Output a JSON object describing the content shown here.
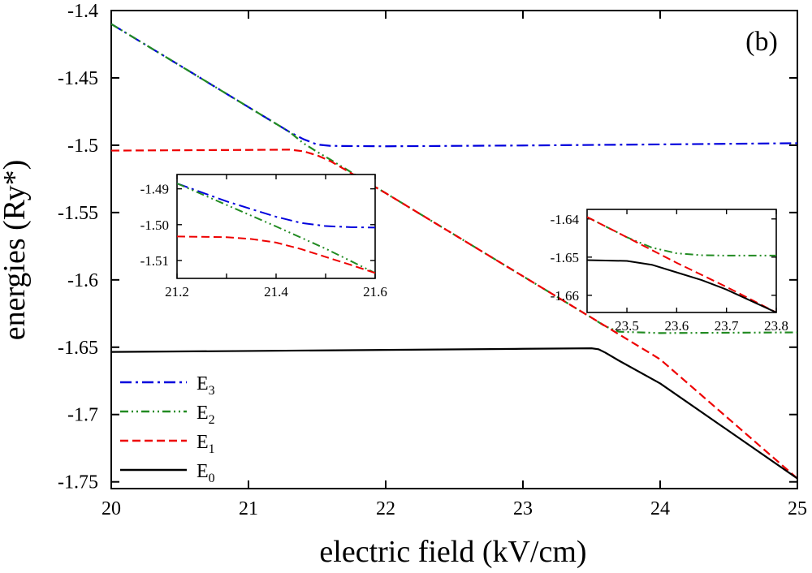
{
  "chart_data": {
    "type": "line",
    "panel_label": "(b)",
    "xlabel": "electric field (kV/cm)",
    "ylabel": "energies (Ry*)",
    "xlim": [
      20,
      25
    ],
    "ylim": [
      -1.755,
      -1.4
    ],
    "xticks": [
      20,
      21,
      22,
      23,
      24,
      25
    ],
    "xtick_labels": [
      "20",
      "21",
      "22",
      "23",
      "24",
      "25"
    ],
    "yticks": [
      -1.4,
      -1.45,
      -1.5,
      -1.55,
      -1.6,
      -1.65,
      -1.7,
      -1.75
    ],
    "ytick_labels": [
      "-1.4",
      "-1.45",
      "-1.5",
      "-1.55",
      "-1.6",
      "-1.65",
      "-1.7",
      "-1.75"
    ],
    "legend_position": "bottom-left",
    "series": [
      {
        "name": "E3",
        "label_main": "E",
        "label_sub": "3",
        "color": "#0000dd",
        "dash": "dashdot",
        "x": [
          20,
          20.5,
          21,
          21.3,
          21.4,
          21.5,
          21.6,
          22,
          23,
          24,
          25
        ],
        "y": [
          -1.41,
          -1.4408,
          -1.4717,
          -1.4902,
          -1.4955,
          -1.4995,
          -1.5005,
          -1.5008,
          -1.5002,
          -1.4994,
          -1.4985
        ]
      },
      {
        "name": "E2",
        "label_main": "E",
        "label_sub": "2",
        "color": "#228B22",
        "dash": "dashdotdot",
        "x": [
          20,
          20.5,
          21,
          21.3,
          21.4,
          21.5,
          21.6,
          22,
          23,
          23.5,
          23.6,
          23.7,
          24,
          25
        ],
        "y": [
          -1.41,
          -1.4408,
          -1.4717,
          -1.4902,
          -1.4985,
          -1.5049,
          -1.5109,
          -1.5356,
          -1.5973,
          -1.6281,
          -1.6345,
          -1.6385,
          -1.6395,
          -1.639
        ]
      },
      {
        "name": "E1",
        "label_main": "E",
        "label_sub": "1",
        "color": "#ee0000",
        "dash": "dashed",
        "x": [
          20,
          21,
          21.3,
          21.4,
          21.5,
          21.6,
          22,
          23,
          23.5,
          24,
          25
        ],
        "y": [
          -1.504,
          -1.5035,
          -1.5033,
          -1.5045,
          -1.5075,
          -1.512,
          -1.5356,
          -1.5973,
          -1.6281,
          -1.659,
          -1.7475
        ]
      },
      {
        "name": "E0",
        "label_main": "E",
        "label_sub": "0",
        "color": "#000000",
        "dash": "solid",
        "x": [
          20,
          21,
          22,
          23,
          23.5,
          23.55,
          23.6,
          23.7,
          24,
          25
        ],
        "y": [
          -1.6535,
          -1.6528,
          -1.652,
          -1.6512,
          -1.6508,
          -1.6515,
          -1.654,
          -1.66,
          -1.6769,
          -1.7475
        ]
      }
    ],
    "insets": [
      {
        "xlim": [
          21.2,
          21.6
        ],
        "ylim": [
          -1.515,
          -1.486
        ],
        "xticks": [
          21.2,
          21.3,
          21.4,
          21.5,
          21.6
        ],
        "xtick_labels": [
          "21.2",
          "",
          "21.4",
          "",
          "21.6"
        ],
        "yticks": [
          -1.49,
          -1.5,
          -1.51
        ],
        "ytick_labels": [
          "-1.49",
          "-1.50",
          "-1.51"
        ],
        "series": [
          {
            "name": "E3",
            "color": "#0000dd",
            "dash": "dashdot",
            "x": [
              21.2,
              21.3,
              21.4,
              21.45,
              21.5,
              21.55,
              21.6
            ],
            "y": [
              -1.4885,
              -1.4935,
              -1.4978,
              -1.4995,
              -1.5004,
              -1.5007,
              -1.5008
            ]
          },
          {
            "name": "E2",
            "color": "#228B22",
            "dash": "dashdotdot",
            "x": [
              21.2,
              21.3,
              21.4,
              21.5,
              21.6
            ],
            "y": [
              -1.4885,
              -1.4945,
              -1.5005,
              -1.5067,
              -1.5135
            ]
          },
          {
            "name": "E1",
            "color": "#ee0000",
            "dash": "dashed",
            "x": [
              21.2,
              21.3,
              21.35,
              21.4,
              21.45,
              21.5,
              21.55,
              21.6
            ],
            "y": [
              -1.5033,
              -1.5035,
              -1.504,
              -1.505,
              -1.5068,
              -1.509,
              -1.5112,
              -1.5135
            ]
          }
        ]
      },
      {
        "xlim": [
          23.42,
          23.8
        ],
        "ylim": [
          -1.6645,
          -1.6375
        ],
        "xticks": [
          23.5,
          23.6,
          23.7,
          23.8
        ],
        "xtick_labels": [
          "23.5",
          "23.6",
          "23.7",
          "23.8"
        ],
        "yticks": [
          -1.64,
          -1.65,
          -1.66
        ],
        "ytick_labels": [
          "-1.64",
          "-1.65",
          "-1.66"
        ],
        "series": [
          {
            "name": "E2",
            "color": "#228B22",
            "dash": "dashdotdot",
            "x": [
              23.42,
              23.5,
              23.55,
              23.6,
              23.65,
              23.7,
              23.8
            ],
            "y": [
              -1.6395,
              -1.6448,
              -1.6475,
              -1.649,
              -1.6495,
              -1.6496,
              -1.6496
            ]
          },
          {
            "name": "E1",
            "color": "#ee0000",
            "dash": "dashed",
            "x": [
              23.42,
              23.5,
              23.6,
              23.7,
              23.8
            ],
            "y": [
              -1.6395,
              -1.6448,
              -1.6515,
              -1.6578,
              -1.6645
            ]
          },
          {
            "name": "E0",
            "color": "#000000",
            "dash": "solid",
            "x": [
              23.42,
              23.5,
              23.55,
              23.6,
              23.65,
              23.7,
              23.8
            ],
            "y": [
              -1.6508,
              -1.651,
              -1.652,
              -1.654,
              -1.656,
              -1.6585,
              -1.6645
            ]
          }
        ]
      }
    ]
  }
}
